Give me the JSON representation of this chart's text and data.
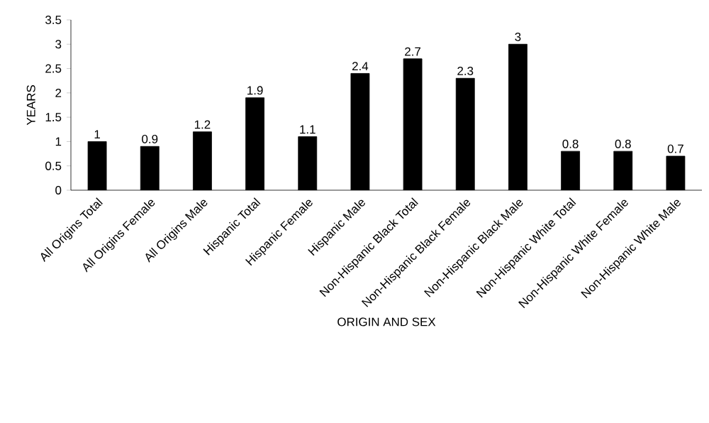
{
  "chart_data": {
    "type": "bar",
    "xlabel": "ORIGIN AND SEX",
    "ylabel": "YEARS",
    "categories": [
      "All Origins Total",
      "All Origins Female",
      "All Origins Male",
      "Hispanic Total",
      "Hispanic Female",
      "Hispanic Male",
      "Non-Hispanic Black Total",
      "Non-Hispanic Black Female",
      "Non-Hispanic Black Male",
      "Non-Hispanic White Total",
      "Non-Hispanic White Female",
      "Non-Hispanic White Male"
    ],
    "values": [
      1,
      0.9,
      1.2,
      1.9,
      1.1,
      2.4,
      2.7,
      2.3,
      3,
      0.8,
      0.8,
      0.7
    ],
    "color": "#000000",
    "ylim": [
      0,
      3.5
    ],
    "yticks": [
      0,
      0.5,
      1,
      1.5,
      2,
      2.5,
      3,
      3.5
    ],
    "data_labels": true,
    "grid": false
  }
}
